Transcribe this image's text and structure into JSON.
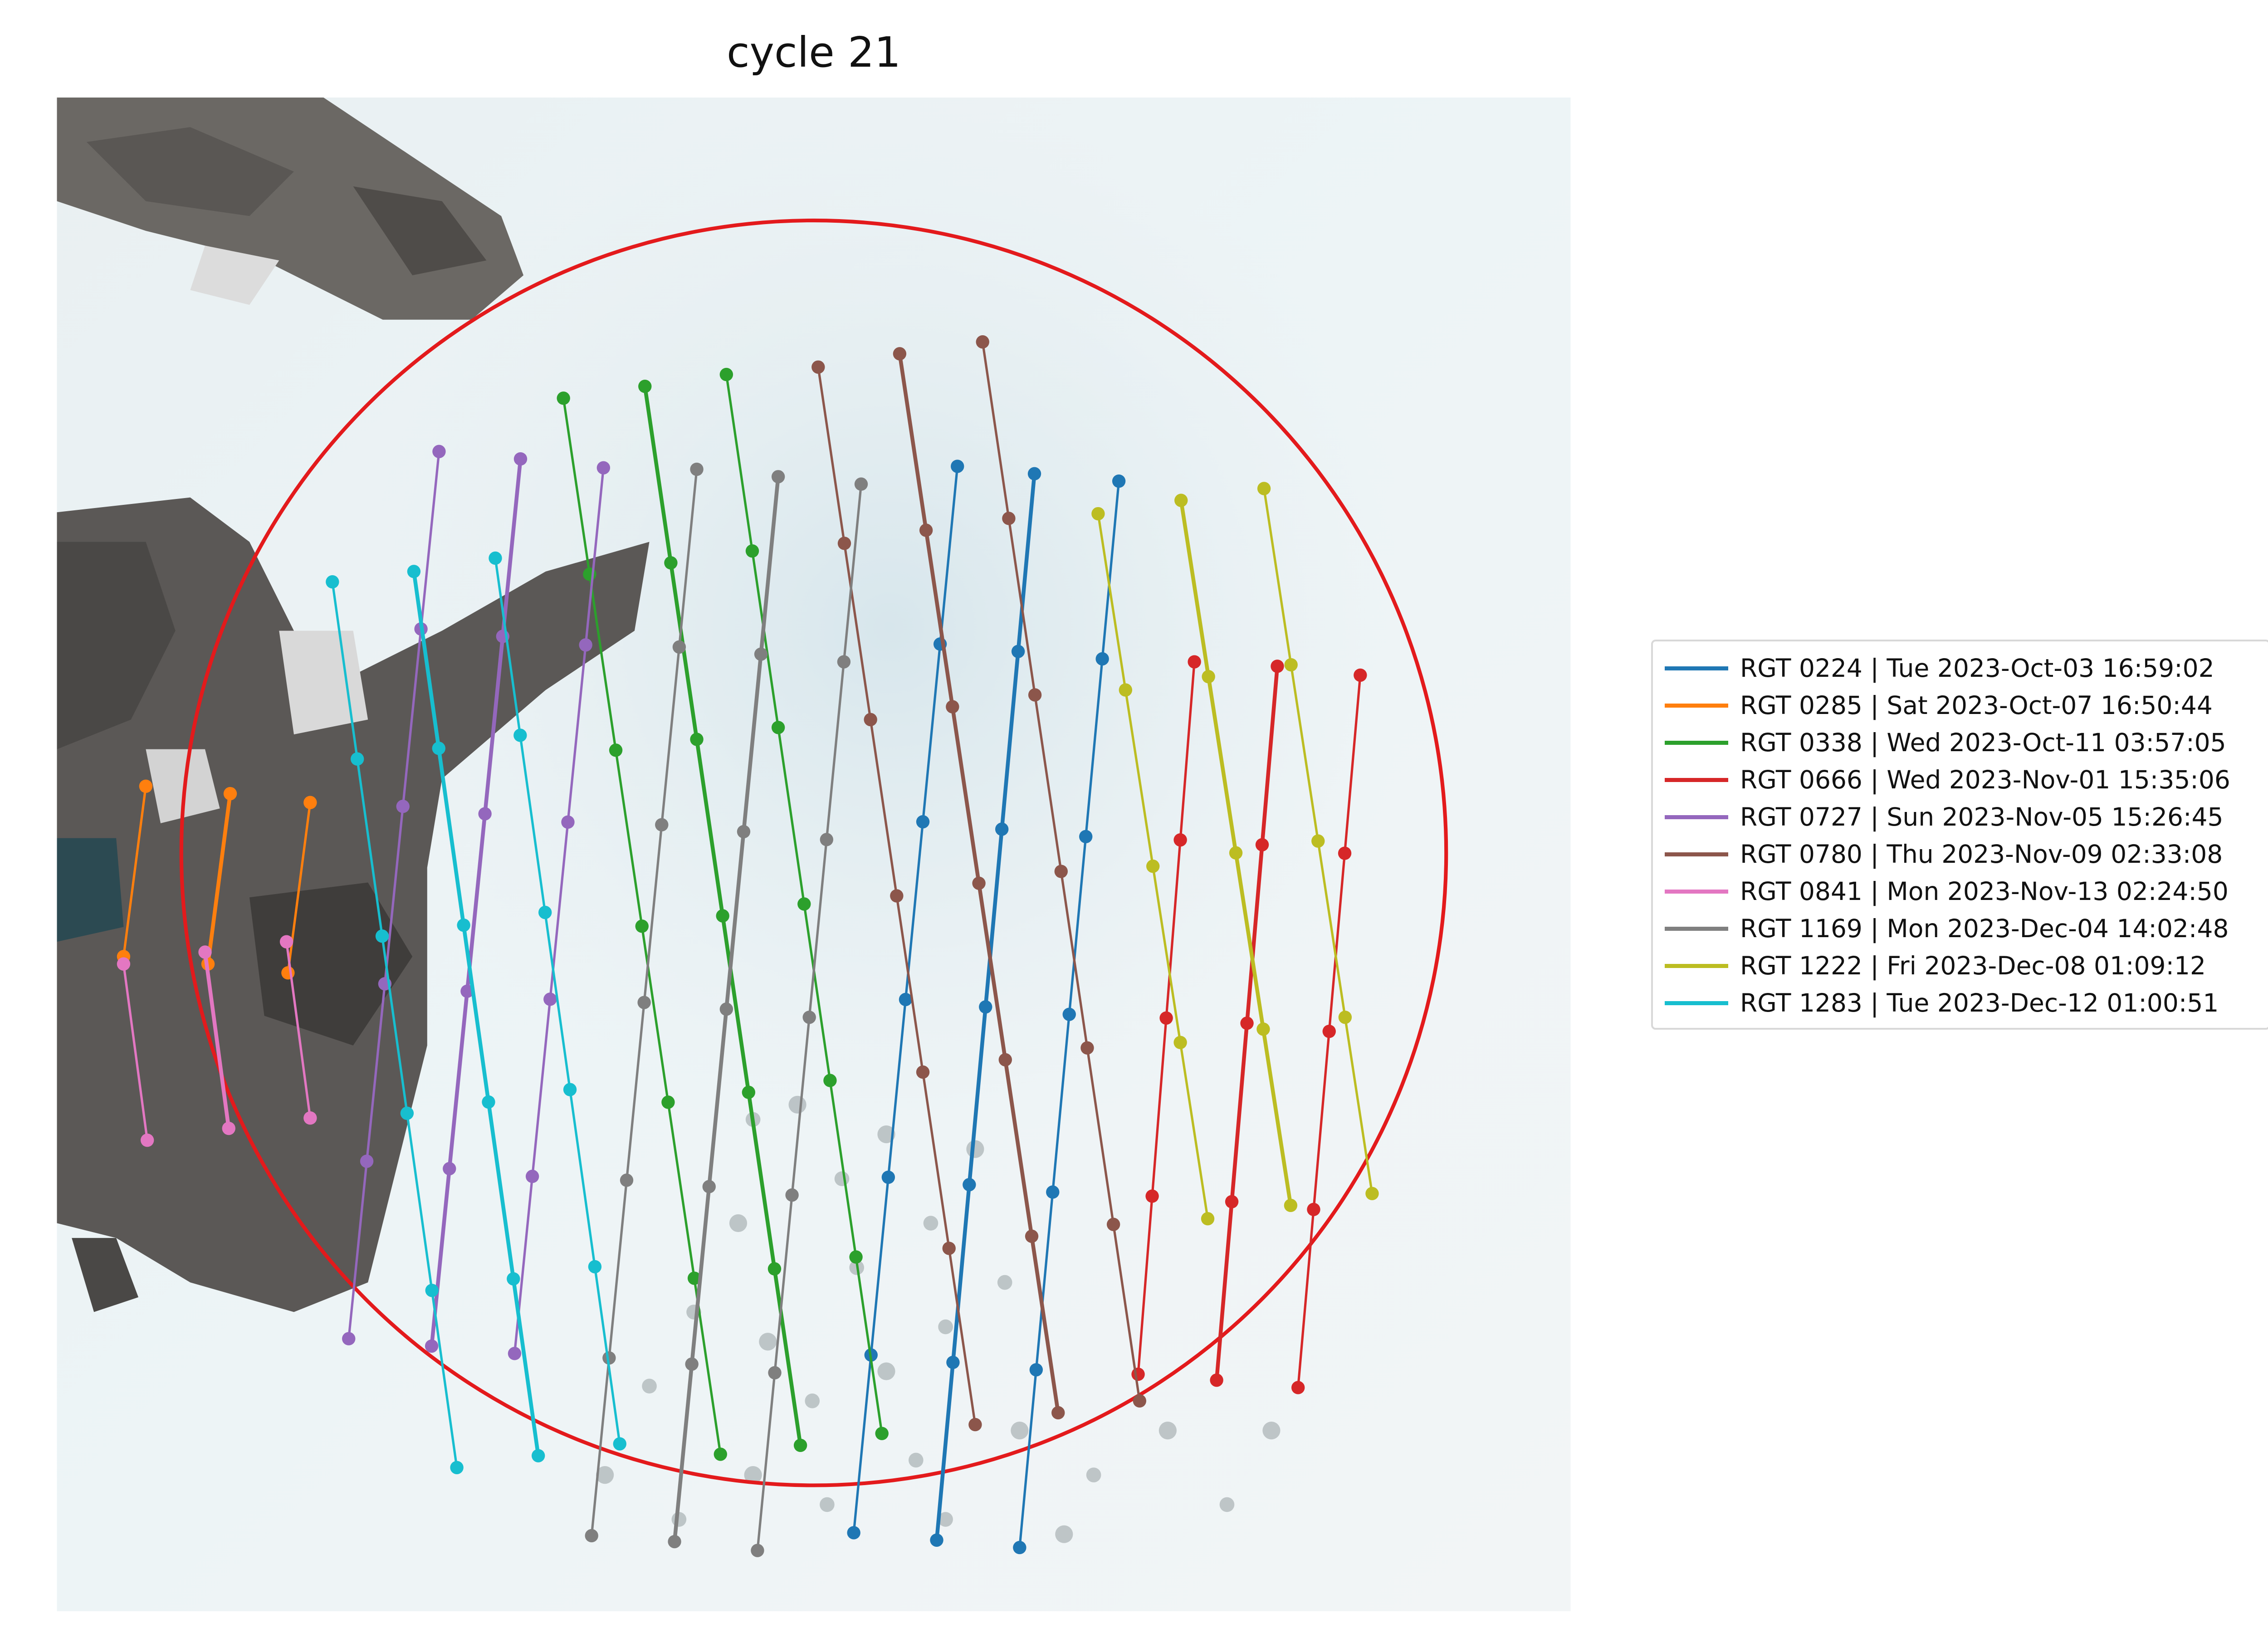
{
  "title": "cycle 21",
  "map": {
    "background": "satellite imagery",
    "boundary": {
      "shape": "circle",
      "color": "#e31a1c"
    },
    "marker": "dot"
  },
  "legend": {
    "placement": "right",
    "items": [
      {
        "label": "RGT 0224 | Tue 2023-Oct-03 16:59:02",
        "color": "#1f77b4"
      },
      {
        "label": "RGT 0285 | Sat 2023-Oct-07 16:50:44",
        "color": "#ff7f0e"
      },
      {
        "label": "RGT 0338 | Wed 2023-Oct-11 03:57:05",
        "color": "#2ca02c"
      },
      {
        "label": "RGT 0666 | Wed 2023-Nov-01 15:35:06",
        "color": "#d62728"
      },
      {
        "label": "RGT 0727 | Sun 2023-Nov-05 15:26:45",
        "color": "#9467bd"
      },
      {
        "label": "RGT 0780 | Thu 2023-Nov-09 02:33:08",
        "color": "#8c564b"
      },
      {
        "label": "RGT 0841 | Mon 2023-Nov-13 02:24:50",
        "color": "#e377c2"
      },
      {
        "label": "RGT 1169 | Mon 2023-Dec-04 14:02:48",
        "color": "#7f7f7f"
      },
      {
        "label": "RGT 1222 | Fri 2023-Dec-08 01:09:12",
        "color": "#bcbd22"
      },
      {
        "label": "RGT 1283 | Tue 2023-Dec-12 01:00:51",
        "color": "#17becf"
      }
    ]
  }
}
